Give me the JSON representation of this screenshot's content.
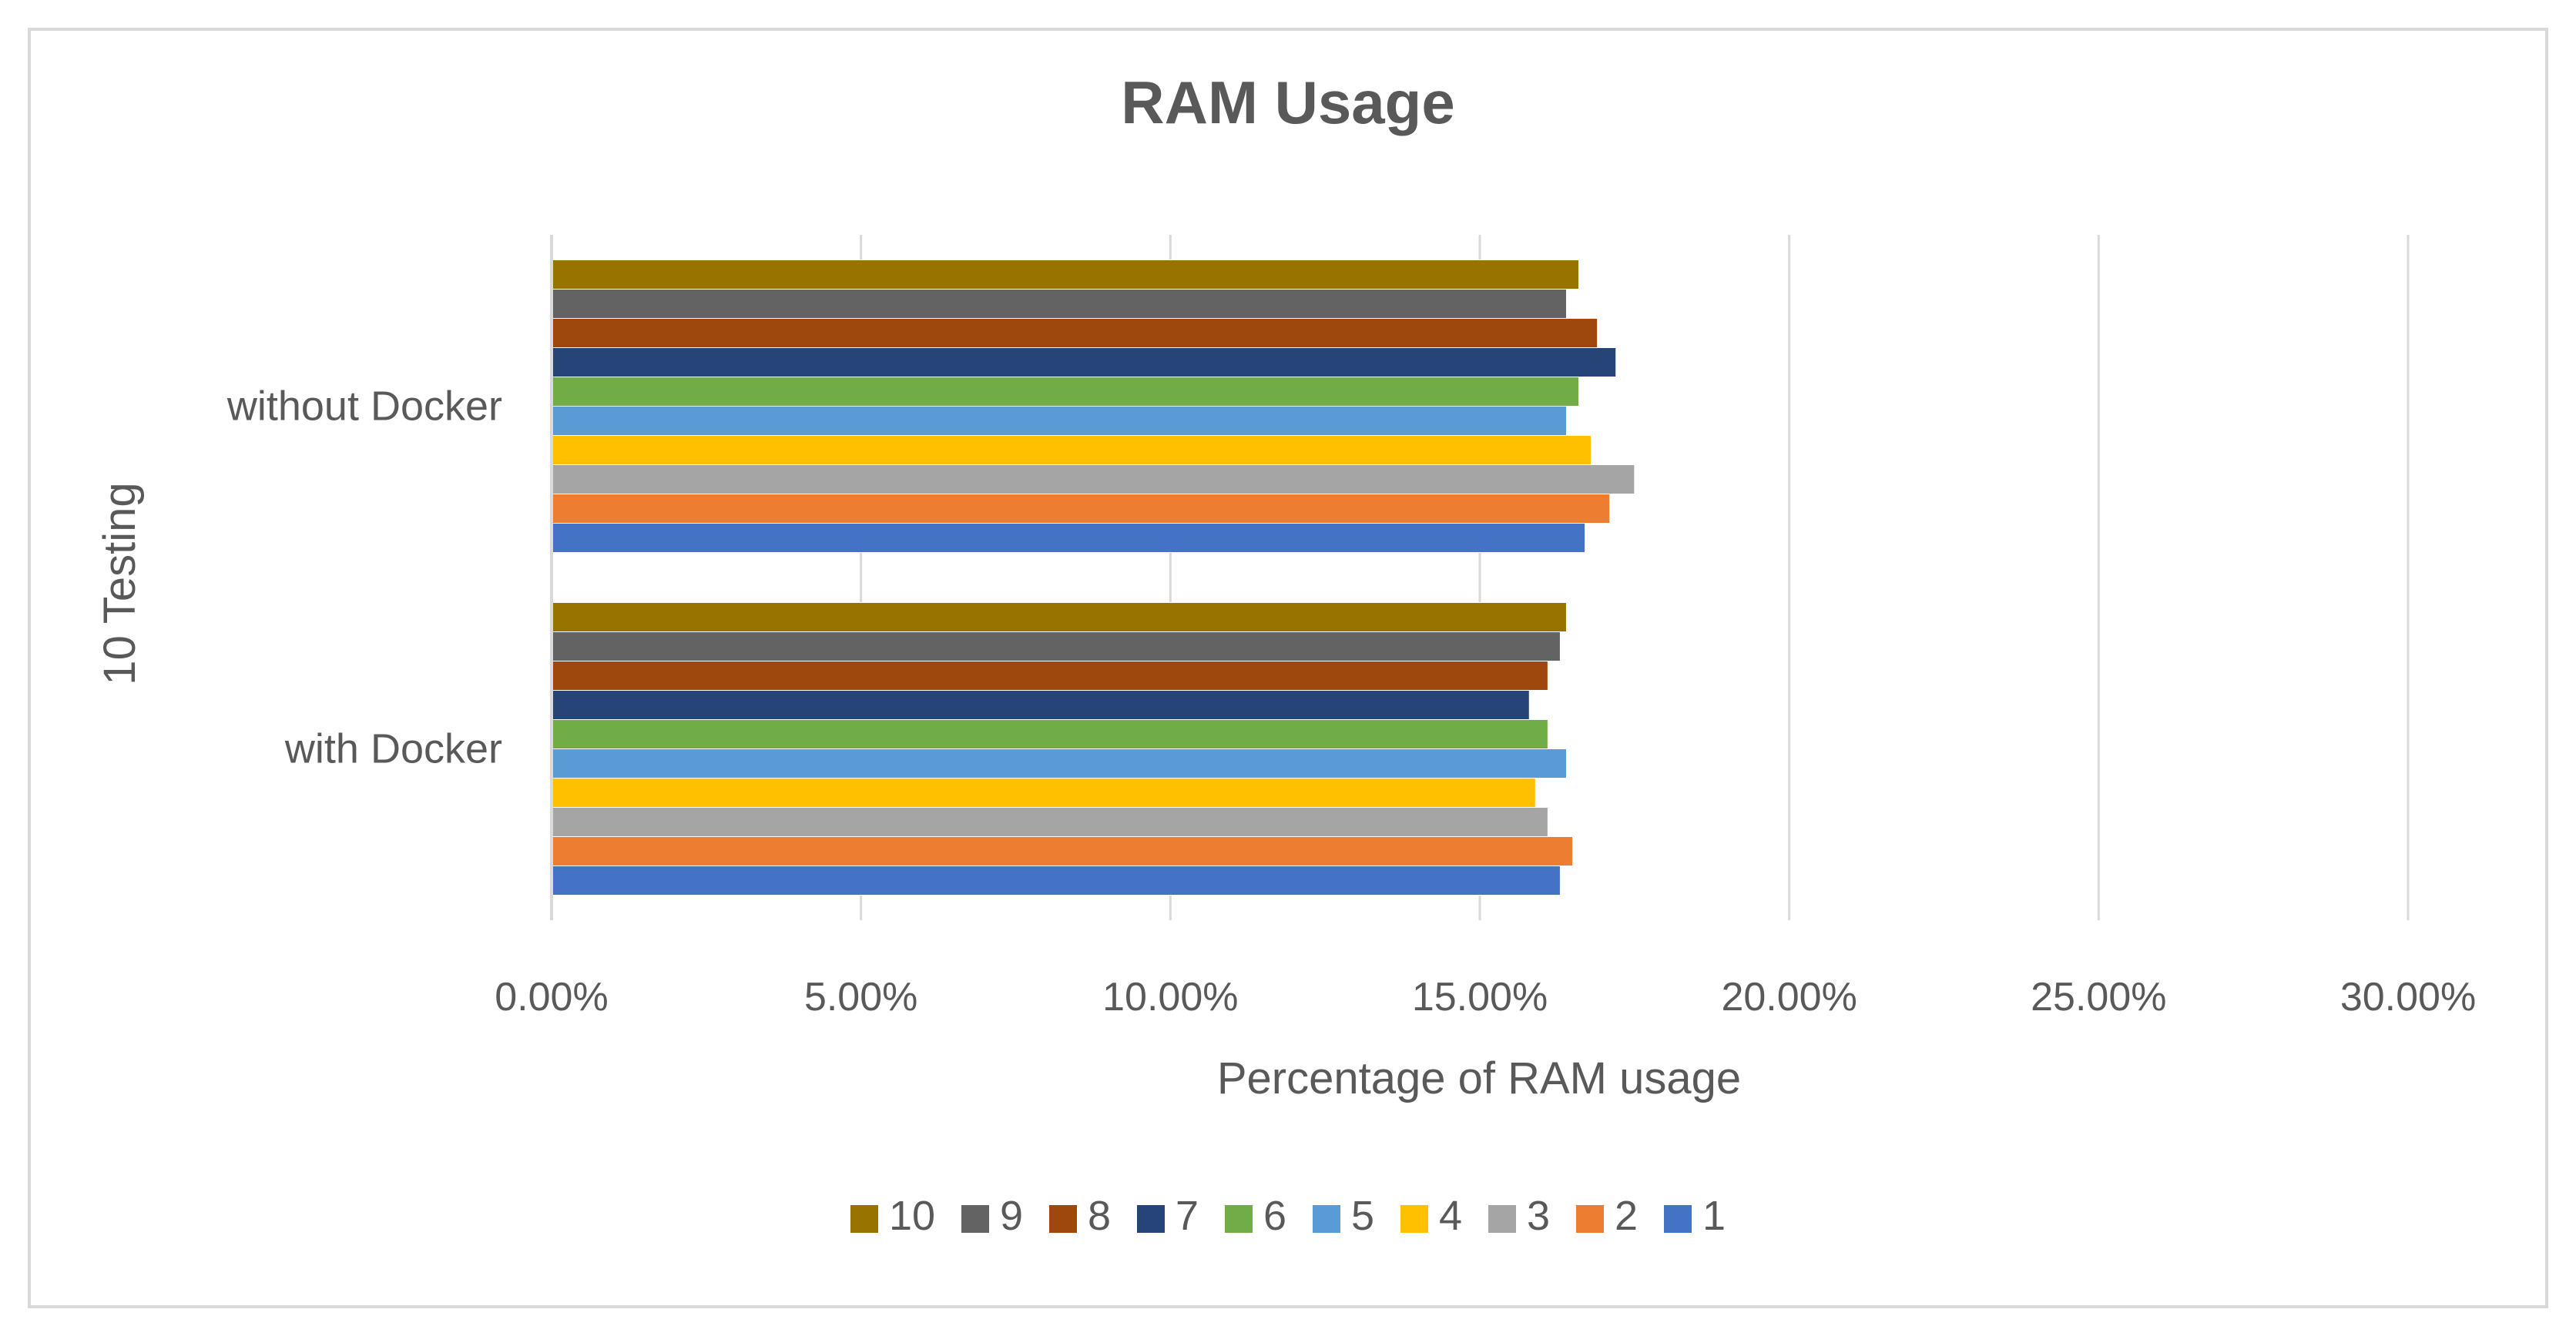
{
  "chart_data": {
    "type": "bar",
    "orientation": "horizontal",
    "title": "RAM Usage",
    "xlabel": "Percentage of RAM usage",
    "ylabel": "10 Testing",
    "categories": [
      "without Docker",
      "with Docker"
    ],
    "xlim": [
      0,
      0.3
    ],
    "x_ticks": [
      0,
      0.05,
      0.1,
      0.15,
      0.2,
      0.25,
      0.3
    ],
    "x_tick_labels": [
      "0.00%",
      "5.00%",
      "10.00%",
      "15.00%",
      "20.00%",
      "25.00%",
      "30.00%"
    ],
    "grid": "vertical major gridlines",
    "legend_position": "bottom",
    "series": [
      {
        "name": "1",
        "color": "#4472C4",
        "values": [
          0.167,
          0.163
        ]
      },
      {
        "name": "2",
        "color": "#ED7D31",
        "values": [
          0.171,
          0.165
        ]
      },
      {
        "name": "3",
        "color": "#A5A5A5",
        "values": [
          0.175,
          0.161
        ]
      },
      {
        "name": "4",
        "color": "#FFC000",
        "values": [
          0.168,
          0.159
        ]
      },
      {
        "name": "5",
        "color": "#5B9BD5",
        "values": [
          0.164,
          0.164
        ]
      },
      {
        "name": "6",
        "color": "#70AD47",
        "values": [
          0.166,
          0.161
        ]
      },
      {
        "name": "7",
        "color": "#264478",
        "values": [
          0.172,
          0.158
        ]
      },
      {
        "name": "8",
        "color": "#9E480E",
        "values": [
          0.169,
          0.161
        ]
      },
      {
        "name": "9",
        "color": "#636363",
        "values": [
          0.164,
          0.163
        ]
      },
      {
        "name": "10",
        "color": "#997300",
        "values": [
          0.166,
          0.164
        ]
      }
    ],
    "legend_order": [
      "10",
      "9",
      "8",
      "7",
      "6",
      "5",
      "4",
      "3",
      "2",
      "1"
    ]
  }
}
